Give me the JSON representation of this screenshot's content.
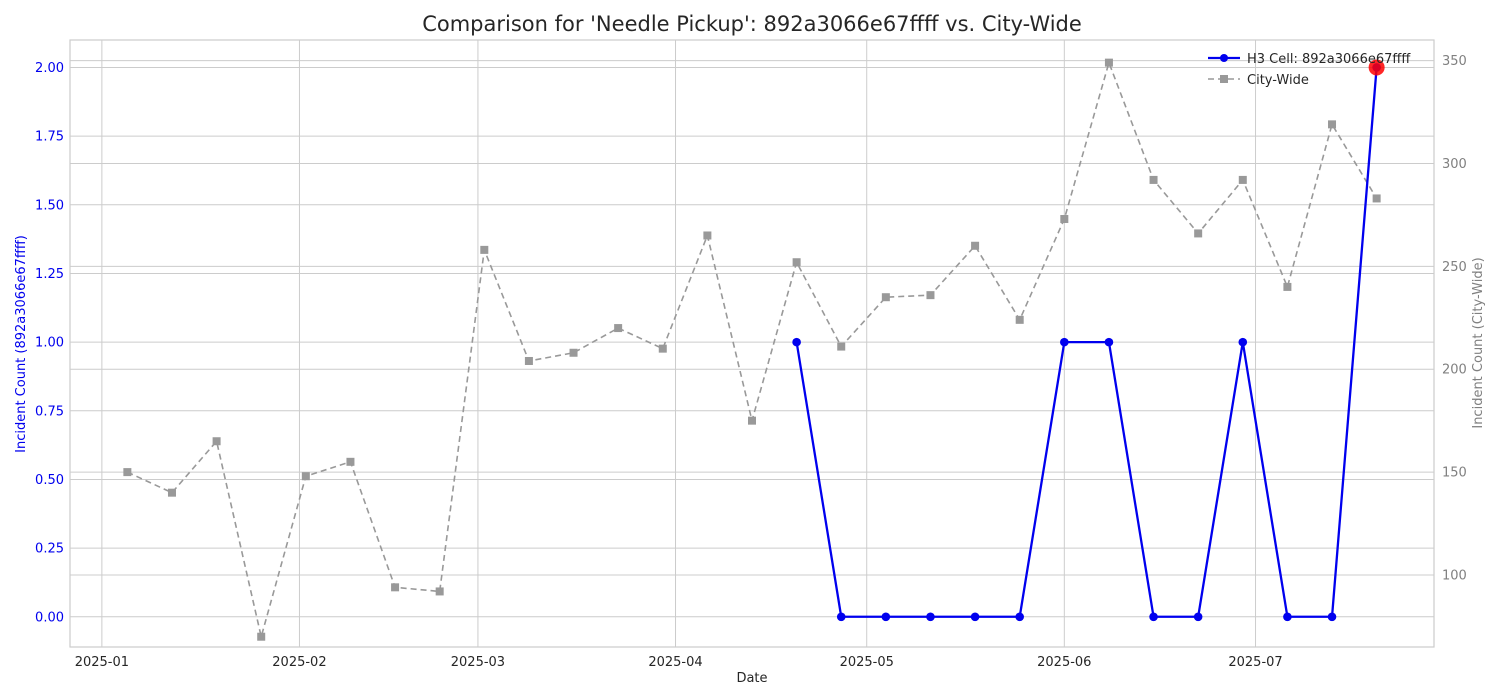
{
  "chart_data": {
    "type": "line",
    "title": "Comparison for 'Needle Pickup': 892a3066e67ffff vs. City-Wide",
    "xlabel": "Date",
    "ylabel_left": "Incident Count (892a3066e67ffff)",
    "ylabel_right": "Incident Count (City-Wide)",
    "x_range": [
      "2024-12-27",
      "2025-07-29"
    ],
    "x_ticks": [
      {
        "date": "2025-01-01",
        "label": "2025-01"
      },
      {
        "date": "2025-02-01",
        "label": "2025-02"
      },
      {
        "date": "2025-03-01",
        "label": "2025-03"
      },
      {
        "date": "2025-04-01",
        "label": "2025-04"
      },
      {
        "date": "2025-05-01",
        "label": "2025-05"
      },
      {
        "date": "2025-06-01",
        "label": "2025-06"
      },
      {
        "date": "2025-07-01",
        "label": "2025-07"
      }
    ],
    "ylim_left": [
      -0.11,
      2.1
    ],
    "ylim_right": [
      65,
      360
    ],
    "y_ticks_left": [
      "0.00",
      "0.25",
      "0.50",
      "0.75",
      "1.00",
      "1.25",
      "1.50",
      "1.75",
      "2.00"
    ],
    "y_ticks_right": [
      "100",
      "150",
      "200",
      "250",
      "300",
      "350"
    ],
    "grid": true,
    "legend_position": "top-right",
    "colors": {
      "cell": "#0000ee",
      "city": "#999999",
      "highlight": "#ff0000",
      "left_axis": "#0000ee",
      "right_axis": "#808080"
    },
    "series": [
      {
        "name": "H3 Cell: 892a3066e67ffff",
        "axis": "left",
        "points": [
          {
            "x": "2025-04-20",
            "y": 1
          },
          {
            "x": "2025-04-27",
            "y": 0
          },
          {
            "x": "2025-05-04",
            "y": 0
          },
          {
            "x": "2025-05-11",
            "y": 0
          },
          {
            "x": "2025-05-18",
            "y": 0
          },
          {
            "x": "2025-05-25",
            "y": 0
          },
          {
            "x": "2025-06-01",
            "y": 1
          },
          {
            "x": "2025-06-08",
            "y": 1
          },
          {
            "x": "2025-06-15",
            "y": 0
          },
          {
            "x": "2025-06-22",
            "y": 0
          },
          {
            "x": "2025-06-29",
            "y": 1
          },
          {
            "x": "2025-07-06",
            "y": 0
          },
          {
            "x": "2025-07-13",
            "y": 0
          },
          {
            "x": "2025-07-20",
            "y": 2
          }
        ]
      },
      {
        "name": "City-Wide",
        "axis": "right",
        "points": [
          {
            "x": "2025-01-05",
            "y": 150
          },
          {
            "x": "2025-01-12",
            "y": 140
          },
          {
            "x": "2025-01-19",
            "y": 165
          },
          {
            "x": "2025-01-26",
            "y": 70
          },
          {
            "x": "2025-02-02",
            "y": 148
          },
          {
            "x": "2025-02-09",
            "y": 155
          },
          {
            "x": "2025-02-16",
            "y": 94
          },
          {
            "x": "2025-02-23",
            "y": 92
          },
          {
            "x": "2025-03-02",
            "y": 258
          },
          {
            "x": "2025-03-09",
            "y": 204
          },
          {
            "x": "2025-03-16",
            "y": 208
          },
          {
            "x": "2025-03-23",
            "y": 220
          },
          {
            "x": "2025-03-30",
            "y": 210
          },
          {
            "x": "2025-04-06",
            "y": 265
          },
          {
            "x": "2025-04-13",
            "y": 175
          },
          {
            "x": "2025-04-20",
            "y": 252
          },
          {
            "x": "2025-04-27",
            "y": 211
          },
          {
            "x": "2025-05-04",
            "y": 235
          },
          {
            "x": "2025-05-11",
            "y": 236
          },
          {
            "x": "2025-05-18",
            "y": 260
          },
          {
            "x": "2025-05-25",
            "y": 224
          },
          {
            "x": "2025-06-01",
            "y": 273
          },
          {
            "x": "2025-06-08",
            "y": 349
          },
          {
            "x": "2025-06-15",
            "y": 292
          },
          {
            "x": "2025-06-22",
            "y": 266
          },
          {
            "x": "2025-06-29",
            "y": 292
          },
          {
            "x": "2025-07-06",
            "y": 240
          },
          {
            "x": "2025-07-13",
            "y": 319
          },
          {
            "x": "2025-07-20",
            "y": 283
          }
        ]
      }
    ],
    "highlight_point": {
      "series": "H3 Cell: 892a3066e67ffff",
      "x": "2025-07-20",
      "y": 2
    }
  }
}
